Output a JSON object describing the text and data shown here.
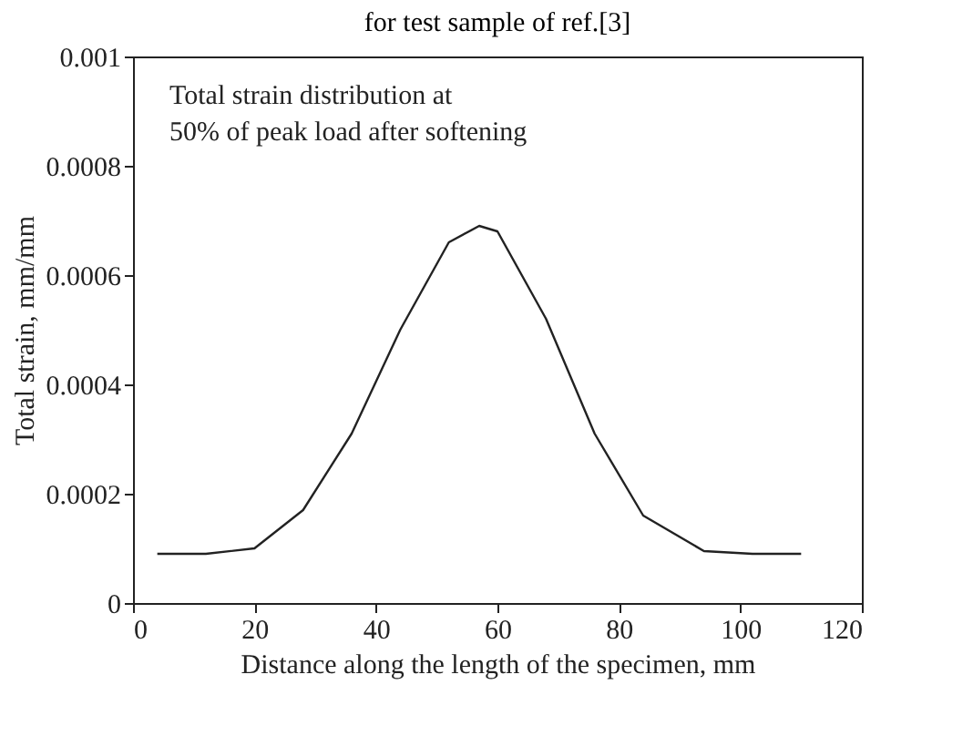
{
  "chart_data": {
    "type": "line",
    "title": "for test sample of ref.[3]",
    "xlabel": "Distance along the length of the specimen, mm",
    "ylabel": "Total strain, mm/mm",
    "x": [
      4,
      12,
      20,
      28,
      36,
      44,
      52,
      57,
      60,
      68,
      76,
      84,
      94,
      102,
      110
    ],
    "series": [
      {
        "color": "#222222",
        "values": [
          9e-05,
          9e-05,
          0.0001,
          0.00017,
          0.00031,
          0.0005,
          0.00066,
          0.00069,
          0.00068,
          0.00052,
          0.00031,
          0.00016,
          9.5e-05,
          9e-05,
          9e-05
        ]
      }
    ],
    "xlim": [
      0,
      120
    ],
    "xticks": [
      0,
      20,
      40,
      60,
      80,
      100,
      120
    ],
    "ylim": [
      0,
      0.001
    ],
    "yticks": [
      0,
      0.0002,
      0.0004,
      0.0006,
      0.0008,
      0.001
    ],
    "annotations": [
      "Total strain distribution at\n50% of peak load after softening"
    ],
    "grid": false,
    "marker": "none",
    "line_style": "solid"
  }
}
